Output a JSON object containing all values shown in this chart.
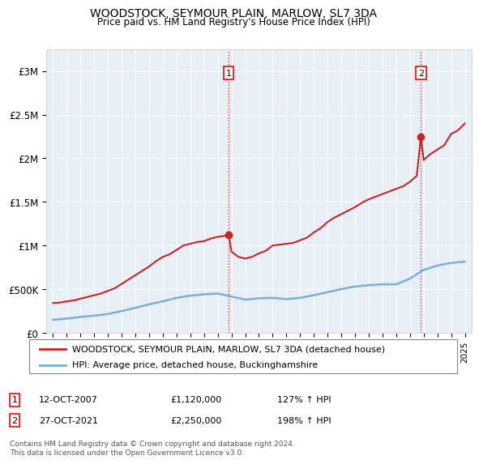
{
  "title": "WOODSTOCK, SEYMOUR PLAIN, MARLOW, SL7 3DA",
  "subtitle": "Price paid vs. HM Land Registry's House Price Index (HPI)",
  "legend_line1": "WOODSTOCK, SEYMOUR PLAIN, MARLOW, SL7 3DA (detached house)",
  "legend_line2": "HPI: Average price, detached house, Buckinghamshire",
  "footnote": "Contains HM Land Registry data © Crown copyright and database right 2024.\nThis data is licensed under the Open Government Licence v3.0.",
  "marker1_date": "12-OCT-2007",
  "marker1_value": "£1,120,000",
  "marker1_hpi": "127% ↑ HPI",
  "marker1_year": 2007.8,
  "marker2_date": "27-OCT-2021",
  "marker2_value": "£2,250,000",
  "marker2_hpi": "198% ↑ HPI",
  "marker2_year": 2021.8,
  "ylim_max": 3250000,
  "yticks": [
    0,
    500000,
    1000000,
    1500000,
    2000000,
    2500000,
    3000000
  ],
  "ytick_labels": [
    "£0",
    "£500K",
    "£1M",
    "£1.5M",
    "£2M",
    "£2.5M",
    "£3M"
  ],
  "hpi_color": "#7bafd4",
  "price_color": "#cc2222",
  "dashed_color": "#cc2222",
  "chart_bg": "#e8eef5",
  "hpi_x": [
    1995,
    1996,
    1997,
    1998,
    1999,
    2000,
    2001,
    2002,
    2003,
    2004,
    2005,
    2006,
    2007,
    2008,
    2009,
    2010,
    2011,
    2012,
    2013,
    2014,
    2015,
    2016,
    2017,
    2018,
    2019,
    2020,
    2021,
    2022,
    2023,
    2024,
    2025
  ],
  "hpi_y": [
    148000,
    162000,
    180000,
    195000,
    215000,
    248000,
    285000,
    325000,
    360000,
    400000,
    425000,
    440000,
    450000,
    415000,
    380000,
    395000,
    400000,
    385000,
    400000,
    430000,
    465000,
    500000,
    530000,
    545000,
    555000,
    555000,
    620000,
    720000,
    770000,
    800000,
    815000
  ],
  "price_x": [
    1995,
    1995.5,
    1996,
    1996.5,
    1997,
    1997.5,
    1998,
    1998.5,
    1999,
    1999.5,
    2000,
    2000.5,
    2001,
    2001.5,
    2002,
    2002.5,
    2003,
    2003.5,
    2004,
    2004.5,
    2005,
    2005.5,
    2006,
    2006.5,
    2007,
    2007.5,
    2007.8,
    2008,
    2008.5,
    2009,
    2009.5,
    2010,
    2010.5,
    2011,
    2011.5,
    2012,
    2012.5,
    2013,
    2013.5,
    2014,
    2014.5,
    2015,
    2015.5,
    2016,
    2016.5,
    2017,
    2017.5,
    2018,
    2018.5,
    2019,
    2019.5,
    2020,
    2020.5,
    2021,
    2021.5,
    2021.8,
    2022,
    2022.5,
    2023,
    2023.5,
    2024,
    2024.5,
    2025
  ],
  "price_y": [
    340000,
    345000,
    360000,
    370000,
    390000,
    410000,
    430000,
    450000,
    480000,
    510000,
    560000,
    610000,
    660000,
    710000,
    760000,
    820000,
    870000,
    900000,
    950000,
    1000000,
    1020000,
    1040000,
    1050000,
    1080000,
    1100000,
    1110000,
    1120000,
    930000,
    870000,
    850000,
    870000,
    910000,
    940000,
    1000000,
    1010000,
    1020000,
    1030000,
    1060000,
    1090000,
    1150000,
    1200000,
    1270000,
    1320000,
    1360000,
    1400000,
    1440000,
    1490000,
    1530000,
    1560000,
    1590000,
    1620000,
    1650000,
    1680000,
    1730000,
    1800000,
    2250000,
    1980000,
    2050000,
    2100000,
    2150000,
    2280000,
    2320000,
    2400000
  ]
}
